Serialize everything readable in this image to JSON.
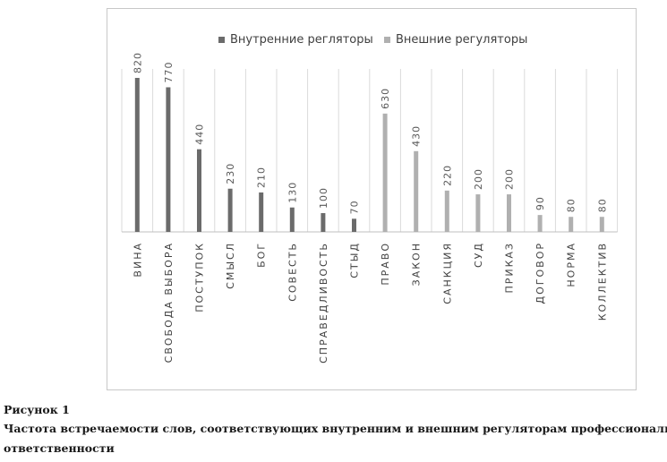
{
  "chart_data": {
    "type": "bar",
    "categories": [
      "ВИНА",
      "СВОБОДА ВЫБОРА",
      "ПОСТУПОК",
      "СМЫСЛ",
      "БОГ",
      "СОВЕСТЬ",
      "СПРАВЕДЛИВОСТЬ",
      "СТЫД",
      "ПРАВО",
      "ЗАКОН",
      "САНКЦИЯ",
      "СУД",
      "ПРИКАЗ",
      "ДОГОВОР",
      "НОРМА",
      "КОЛЛЕКТИВ"
    ],
    "series": [
      {
        "name": "Внутренние регляторы",
        "color": "#6b6b6b",
        "values": [
          820,
          770,
          440,
          230,
          210,
          130,
          100,
          70,
          null,
          null,
          null,
          null,
          null,
          null,
          null,
          null
        ]
      },
      {
        "name": "Внешние регуляторы",
        "color": "#b0b0b0",
        "values": [
          null,
          null,
          null,
          null,
          null,
          null,
          null,
          null,
          630,
          430,
          220,
          200,
          200,
          90,
          80,
          80
        ]
      }
    ],
    "ylim": [
      0,
      900
    ],
    "grid": "vertical",
    "legend_position": "top"
  },
  "caption": {
    "label": "Рисунок 1",
    "text_line1": "Частота встречаемости слов, соответствующих внутренним и внешним регуляторам профессиональной",
    "text_line2": "ответственности"
  }
}
